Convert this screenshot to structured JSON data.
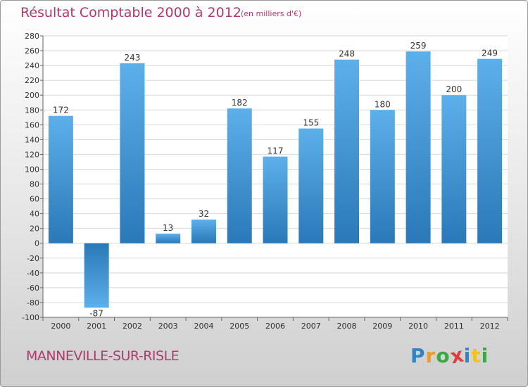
{
  "title": "Résultat Comptable 2000 à 2012",
  "unit_note": "(en milliers d'€)",
  "city": "MANNEVILLE-SUR-RISLE",
  "logo": {
    "letters": [
      "P",
      "r",
      "o",
      "x",
      "i",
      "t",
      "i"
    ],
    "colors": [
      "#2e84c8",
      "#f09a1e",
      "#3aa843",
      "#e23d3d",
      "#2e84c8",
      "#f0c419",
      "#3aa843"
    ]
  },
  "colors": {
    "bar_top": "#5cb0ea",
    "bar_bottom": "#2a78b8",
    "title": "#b03a6e"
  },
  "chart_data": {
    "type": "bar",
    "title": "Résultat Comptable 2000 à 2012",
    "xlabel": "",
    "ylabel": "",
    "categories": [
      "2000",
      "2001",
      "2002",
      "2003",
      "2004",
      "2005",
      "2006",
      "2007",
      "2008",
      "2009",
      "2010",
      "2011",
      "2012"
    ],
    "values": [
      172,
      -87,
      243,
      13,
      32,
      182,
      117,
      155,
      248,
      180,
      259,
      200,
      249
    ],
    "data_labels": [
      "172",
      "-87",
      "243",
      "13",
      "32",
      "182",
      "117",
      "155",
      "248",
      "180",
      "259",
      "200",
      "249"
    ],
    "ylim": [
      -100,
      280
    ],
    "yticks": [
      -100,
      -80,
      -60,
      -40,
      -20,
      0,
      20,
      40,
      60,
      80,
      100,
      120,
      140,
      160,
      180,
      200,
      220,
      240,
      260,
      280
    ],
    "ytick_labels": [
      "-100",
      "-80",
      "-60",
      "-40",
      "-20",
      "0",
      "20",
      "40",
      "60",
      "80",
      "100",
      "120",
      "140",
      "160",
      "180",
      "200",
      "220",
      "240",
      "260",
      "280"
    ],
    "grid": true
  }
}
